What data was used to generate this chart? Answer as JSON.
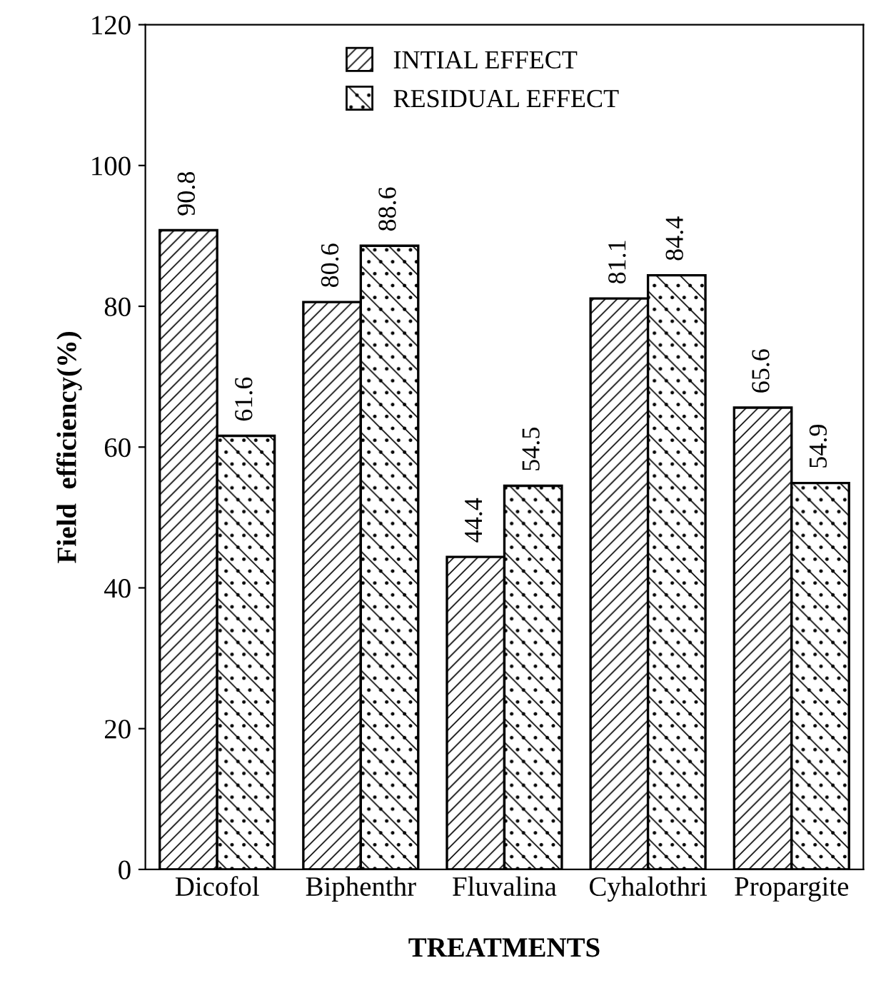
{
  "chart_data": {
    "type": "bar",
    "xlabel": "TREATMENTS",
    "ylabel": "Field  efficiency(%)",
    "categories": [
      "Dicofol",
      "Biphenthr",
      "Fluvalina",
      "Cyhalothri",
      "Propargite"
    ],
    "series": [
      {
        "name": "INTIAL EFFECT",
        "color": "#000000",
        "values": [
          90.8,
          80.6,
          44.4,
          81.1,
          65.6
        ]
      },
      {
        "name": "RESIDUAL EFFECT",
        "color": "#000000",
        "values": [
          61.6,
          88.6,
          54.5,
          84.4,
          54.9
        ]
      }
    ],
    "ylim": [
      0,
      120
    ],
    "yticks": [
      0,
      20,
      40,
      60,
      80,
      100,
      120
    ],
    "data_labels": true,
    "legend": "top",
    "grid": false
  }
}
